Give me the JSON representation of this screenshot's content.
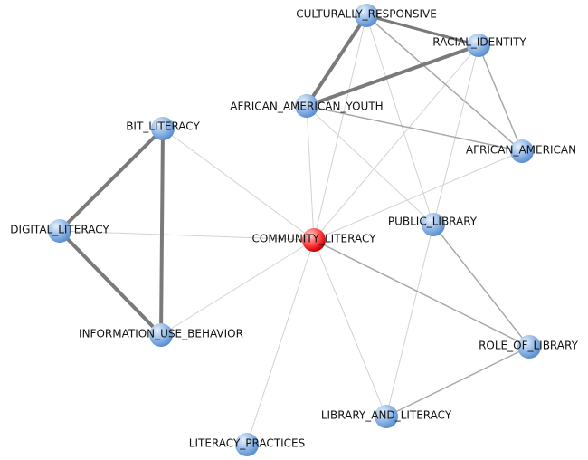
{
  "nodes": [
    {
      "label": "CULTURALLY_RESPONSIVE"
    },
    {
      "label": "RACIAL_IDENTITY"
    },
    {
      "label": "AFRICAN_AMERICAN_YOUTH"
    },
    {
      "label": "BIT_LITERACY"
    },
    {
      "label": "AFRICAN_AMERICAN"
    },
    {
      "label": "DIGITAL_LITERACY"
    },
    {
      "label": "PUBLIC_LIBRARY"
    },
    {
      "label": "COMMUNITY_LITERACY"
    },
    {
      "label": "INFORMATION_USE_BEHAVIOR"
    },
    {
      "label": "ROLE_OF_LIBRARY"
    },
    {
      "label": "LIBRARY_AND_LITERACY"
    },
    {
      "label": "LITERACY_PRACTICES"
    }
  ]
}
